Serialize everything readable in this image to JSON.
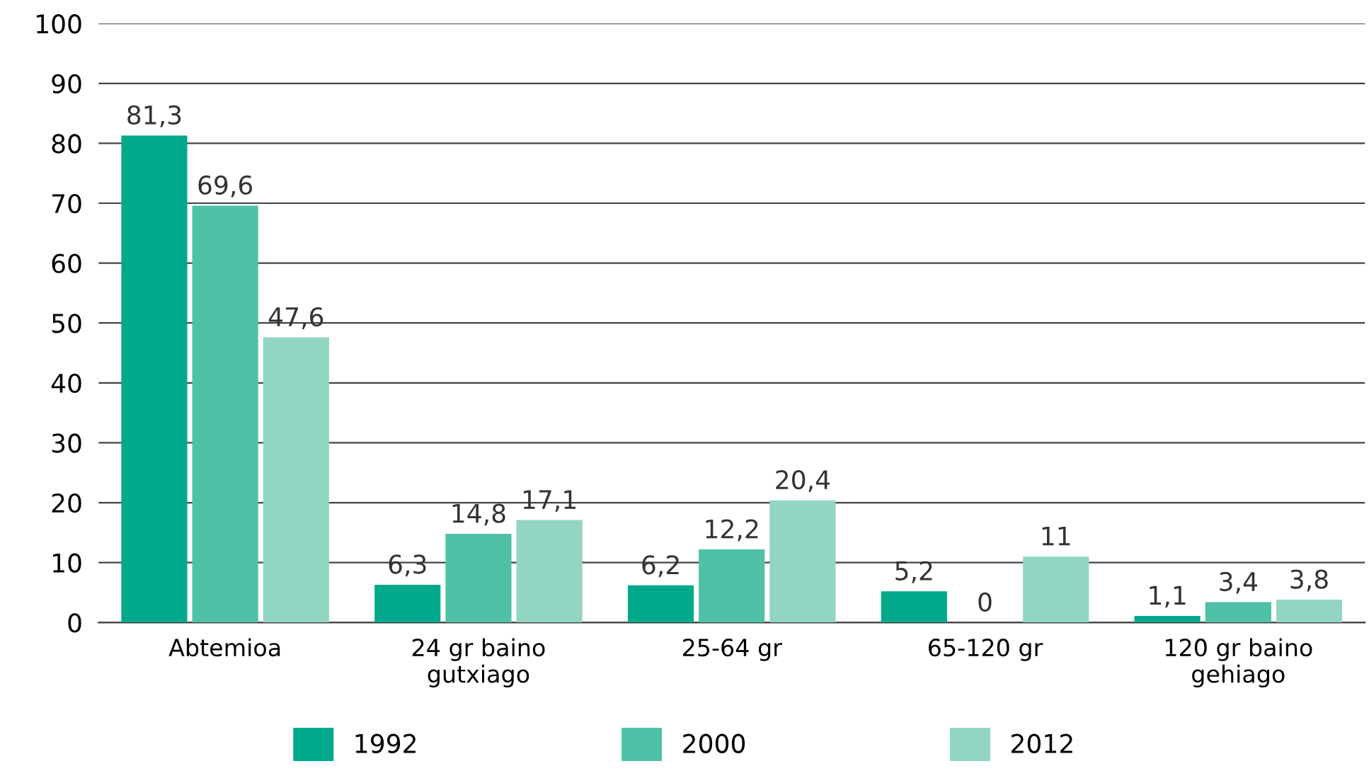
{
  "chart_data": {
    "type": "bar",
    "categories": [
      "Abtemioa",
      "24 gr baino\ngutxiago",
      "25-64 gr",
      "65-120 gr",
      "120 gr baino\ngehiago"
    ],
    "series": [
      {
        "name": "1992",
        "color": "#00a98b",
        "values": [
          81.3,
          6.3,
          6.2,
          5.2,
          1.1
        ],
        "value_labels": [
          "81,3",
          "6,3",
          "6,2",
          "5,2",
          "1,1"
        ]
      },
      {
        "name": "2000",
        "color": "#4fc1a6",
        "values": [
          69.6,
          14.8,
          12.2,
          0,
          3.4
        ],
        "value_labels": [
          "69,6",
          "14,8",
          "12,2",
          "0",
          "3,4"
        ]
      },
      {
        "name": "2012",
        "color": "#92d5c3",
        "values": [
          47.6,
          17.1,
          20.4,
          11,
          3.8
        ],
        "value_labels": [
          "47,6",
          "17,1",
          "20,4",
          "11",
          "3,8"
        ]
      }
    ],
    "ylim": [
      0,
      100
    ],
    "yticks": [
      0,
      10,
      20,
      30,
      40,
      50,
      60,
      70,
      80,
      90,
      100
    ],
    "grid": "y",
    "legend": "bottom"
  }
}
